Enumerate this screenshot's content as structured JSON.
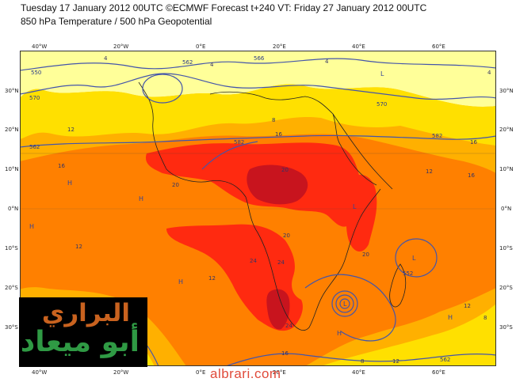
{
  "title_line1": "Tuesday 17 January 2012 00UTC ©ECMWF Forecast t+240 VT: Friday 27 January 2012 00UTC",
  "title_line2": "850 hPa Temperature / 500 hPa Geopotential",
  "longitude_labels": [
    "40°W",
    "20°W",
    "0°E",
    "20°E",
    "40°E",
    "60°E"
  ],
  "latitude_labels": [
    "30°N",
    "20°N",
    "10°N",
    "0°N",
    "10°S",
    "20°S",
    "30°S"
  ],
  "geopotential_labels": [
    "550",
    "570",
    "562",
    "566",
    "570",
    "562",
    "582",
    "552",
    "582",
    "562"
  ],
  "temperature_labels": [
    "4",
    "4",
    "4",
    "8",
    "12",
    "16",
    "16",
    "16",
    "20",
    "20",
    "20",
    "24",
    "24",
    "24",
    "20",
    "12",
    "12",
    "16",
    "12",
    "16",
    "12",
    "12",
    "8",
    "8",
    "4"
  ],
  "high_low_markers": [
    "H",
    "H",
    "H",
    "H",
    "H",
    "H",
    "H",
    "L",
    "L",
    "L",
    "L"
  ],
  "colors": {
    "band_4_8": "#ffff99",
    "band_8_12": "#ffe000",
    "band_12_16": "#ffb000",
    "band_16_20": "#ff8000",
    "band_20_24": "#ff2a10",
    "band_24_plus": "#c8141e",
    "contour": "#4455aa",
    "coastline": "#222222"
  },
  "logo": {
    "line1": "البراري",
    "line2": "أبو ميعاد"
  },
  "watermark": "albrari.com"
}
